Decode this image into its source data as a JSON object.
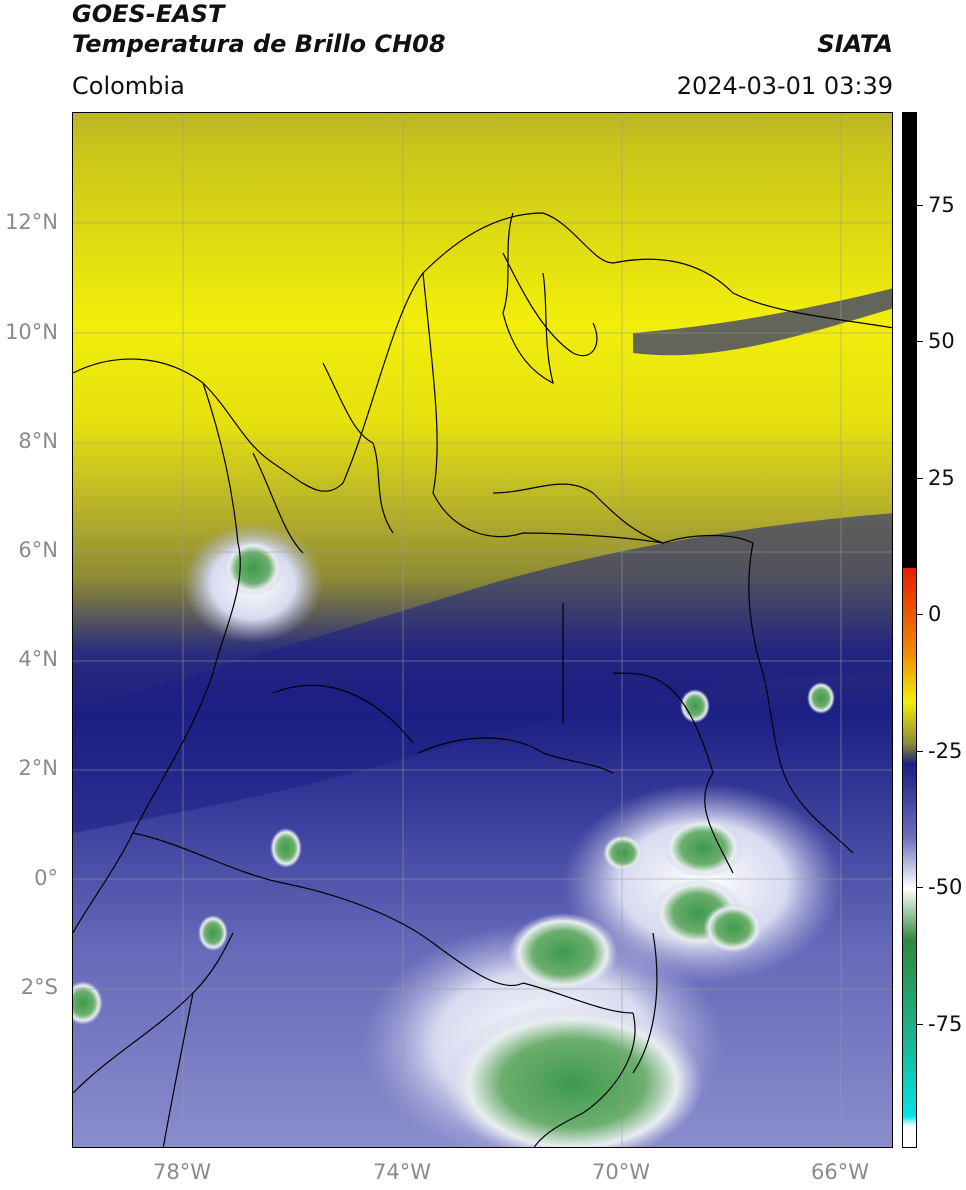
{
  "header": {
    "title_line1": "GOES-EAST",
    "title_line2": "Temperatura de Brillo CH08",
    "brand": "SIATA",
    "region": "Colombia",
    "timestamp": "2024-03-01 03:39"
  },
  "map": {
    "lat_labels": [
      "12°N",
      "10°N",
      "8°N",
      "6°N",
      "4°N",
      "2°N",
      "0°",
      "2°S"
    ],
    "lon_labels": [
      "78°W",
      "74°W",
      "70°W",
      "66°W"
    ],
    "colors": {
      "warm": "#c9c41a",
      "bright_yellow": "#f2ee0a",
      "transition": "#8d8a34",
      "cold_band": "#1c1f84",
      "mid": "#5a5fb0",
      "light": "#a9acd8",
      "coldest": "#2f9a55"
    }
  },
  "colorbar": {
    "labels": [
      "75",
      "50",
      "25",
      "0",
      "-25",
      "-50",
      "-75"
    ],
    "colors": {
      "top": "#000000",
      "red": "#e81c00",
      "orange": "#f28a00",
      "yellow": "#f2ee0a",
      "olive": "#8d8a34",
      "navy": "#1c1f84",
      "purple": "#6b6fc0",
      "white": "#ffffff",
      "green": "#2f8a3b",
      "teal": "#19b89a",
      "cyan": "#00e5e5"
    }
  }
}
